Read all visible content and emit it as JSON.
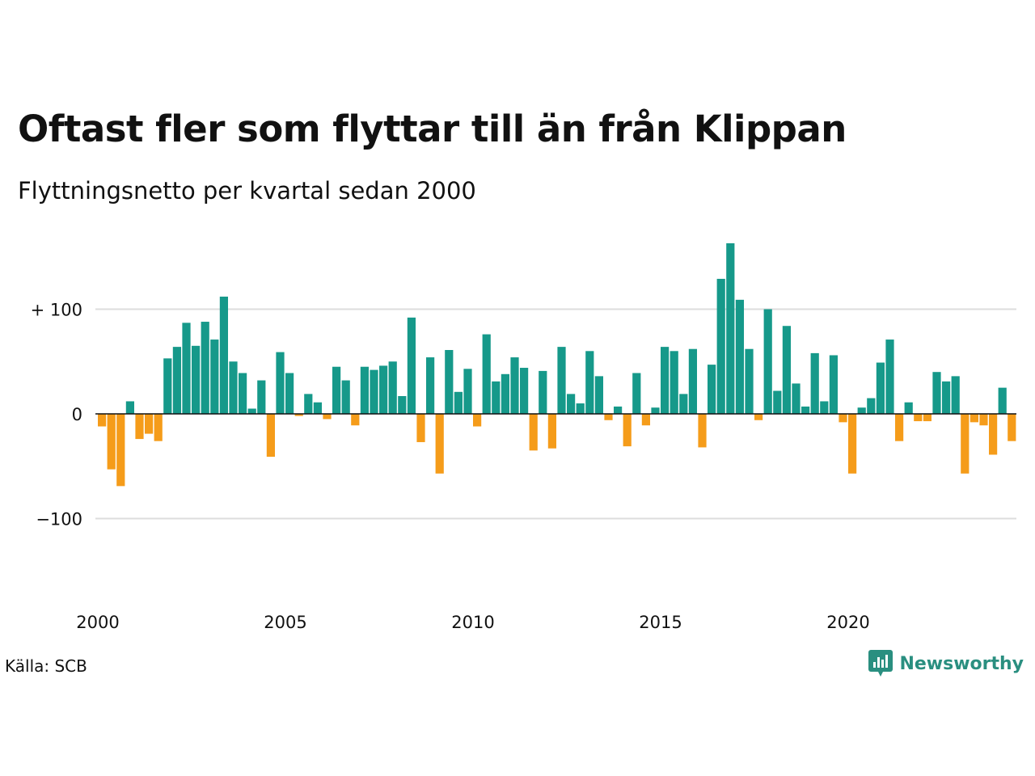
{
  "header": {
    "title": "Oftast fler som flyttar till än från Klippan",
    "subtitle": "Flyttningsnetto per kvartal sedan 2000"
  },
  "footer": {
    "source": "Källa: SCB",
    "brand": "Newsworthy"
  },
  "colors": {
    "positive": "#16998a",
    "negative": "#f59c1a",
    "grid": "#dddddd",
    "axis": "#111111",
    "brand": "#2a8f80"
  },
  "icons": {
    "logo": "newsworthy-logo-icon"
  },
  "chart_data": {
    "type": "bar",
    "x_start": "2000 Q1",
    "period": "quarter",
    "values": [
      -12,
      -53,
      -69,
      12,
      -24,
      -19,
      -26,
      53,
      64,
      87,
      65,
      88,
      71,
      112,
      50,
      39,
      5,
      32,
      -41,
      59,
      39,
      -2,
      19,
      11,
      -5,
      45,
      32,
      -11,
      45,
      42,
      46,
      50,
      17,
      92,
      -27,
      54,
      -57,
      61,
      21,
      43,
      -12,
      76,
      31,
      38,
      54,
      44,
      -35,
      41,
      -33,
      64,
      19,
      10,
      60,
      36,
      -6,
      7,
      -31,
      39,
      -11,
      6,
      64,
      60,
      19,
      62,
      -32,
      47,
      129,
      163,
      109,
      62,
      -6,
      100,
      22,
      84,
      29,
      7,
      58,
      12,
      56,
      -8,
      -57,
      6,
      15,
      49,
      71,
      -26,
      11,
      -7,
      -7,
      40,
      31,
      36,
      -57,
      -8,
      -11,
      -39,
      25,
      -26
    ],
    "x_ticks": [
      {
        "label": "2000",
        "year": 2000
      },
      {
        "label": "2005",
        "year": 2005
      },
      {
        "label": "2010",
        "year": 2010
      },
      {
        "label": "2015",
        "year": 2015
      },
      {
        "label": "2020",
        "year": 2020
      }
    ],
    "y_ticks": [
      {
        "label": "+ 100",
        "value": 100
      },
      {
        "label": "0",
        "value": 0
      },
      {
        "label": "−100",
        "value": -100
      }
    ],
    "ylim": [
      -180,
      165
    ],
    "grid": true,
    "legend": "none"
  }
}
